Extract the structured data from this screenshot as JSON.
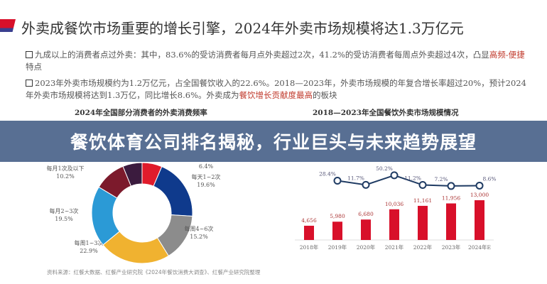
{
  "slide": {
    "title": "外卖成餐饮市场重要的增长引擎，2024年外卖市场规模将达1.3万亿元",
    "bullets": [
      {
        "parts": [
          {
            "text": "九成以上的消费者点过外卖：其中，83.6%的受访消费者每月点外卖超过2次，41.2%的受访消费者每周点外卖超过4次，凸显"
          },
          {
            "text": "高频-便捷",
            "highlight": true
          },
          {
            "text": "特点"
          }
        ]
      },
      {
        "parts": [
          {
            "text": "2023年外卖市场规模约为1.2万亿元，占全国餐饮收入的22.6%。2018—2023年，外卖市场规模的年复合增长率超过20%，预计2024年外卖市场规模将达到1.3万亿，同比增长8.6%。外卖成为"
          },
          {
            "text": "餐饮增长贡献度最高",
            "highlight": true
          },
          {
            "text": "的板块"
          }
        ]
      }
    ],
    "source": "资料来源：红餐大数据、红餐产业研究院《2024年餐饮消费大调查》、红餐产业研究院整理"
  },
  "banner": {
    "text": "餐饮体育公司排名揭秘，行业巨头与未来趋势展望"
  },
  "colors": {
    "accent_red": "#d8102a",
    "banner": "#4a638a",
    "highlight": "#c0392b"
  },
  "chart_data": [
    {
      "type": "pie",
      "title": "2024年全国部分消费者的外卖消费频率",
      "donut": true,
      "slices": [
        {
          "label": "",
          "value": 6.4,
          "display": "6.4%",
          "color": "#e01b2b"
        },
        {
          "label": "每天1~2次",
          "value": 19.6,
          "display": "19.6%",
          "color": "#0f3a8c"
        },
        {
          "label": "每周4~6次",
          "value": 15.2,
          "display": "15.2%",
          "color": "#8c8c8c"
        },
        {
          "label": "每周1~3次",
          "value": 22.9,
          "display": "22.9%",
          "color": "#f0b230"
        },
        {
          "label": "每月2~3次",
          "value": 19.5,
          "display": "19.5%",
          "color": "#2b9ad6"
        },
        {
          "label": "每月1次及以下",
          "value": 10.2,
          "display": "10.2%",
          "color": "#7c1a2c"
        },
        {
          "label": "",
          "value": 6.2,
          "display": "",
          "color": "#3b1b3e"
        }
      ]
    },
    {
      "type": "bar",
      "title": "2018—2023年全国餐饮外卖市场规模情况",
      "categories": [
        "2018年",
        "2019年",
        "2020年",
        "2021年",
        "2022年",
        "2023年",
        "2024年E"
      ],
      "series": [
        {
          "type": "bar",
          "values": [
            4656,
            5980,
            6680,
            10036,
            11161,
            11956,
            13000
          ],
          "labels": [
            "4,656",
            "5,980",
            "6,680",
            "10,036",
            "11,161",
            "11,956",
            "13,000"
          ],
          "color": "#d8102a"
        },
        {
          "type": "line",
          "values": [
            null,
            28.4,
            11.7,
            50.2,
            11.2,
            7.2,
            8.6
          ],
          "labels": [
            "",
            "28.4%",
            "11.7%",
            "50.2%",
            "11.2%",
            "7.2%",
            "8.6%"
          ],
          "color": "#1f3b63"
        }
      ]
    }
  ]
}
